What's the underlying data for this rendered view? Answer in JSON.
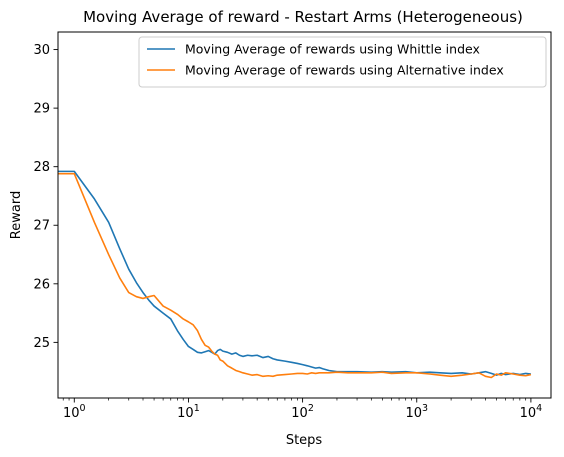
{
  "chart_data": {
    "type": "line",
    "title": "Moving Average of reward - Restart Arms (Heterogeneous)",
    "xlabel": "Steps",
    "ylabel": "Reward",
    "xscale": "log",
    "xlim": [
      0.72,
      15000
    ],
    "ylim": [
      24.05,
      30.3
    ],
    "xticks": [
      {
        "value": 1,
        "base": "10",
        "exp": "0"
      },
      {
        "value": 10,
        "base": "10",
        "exp": "1"
      },
      {
        "value": 100,
        "base": "10",
        "exp": "2"
      },
      {
        "value": 1000,
        "base": "10",
        "exp": "3"
      },
      {
        "value": 10000,
        "base": "10",
        "exp": "4"
      }
    ],
    "yticks": [
      {
        "value": 25,
        "label": "25"
      },
      {
        "value": 26,
        "label": "26"
      },
      {
        "value": 27,
        "label": "27"
      },
      {
        "value": 28,
        "label": "28"
      },
      {
        "value": 29,
        "label": "29"
      },
      {
        "value": 30,
        "label": "30"
      }
    ],
    "grid": false,
    "legend_position": "top-right",
    "series": [
      {
        "name": "Moving Average of rewards using Whittle index",
        "color": "#1f77b4",
        "x": [
          0.72,
          1,
          1.5,
          2,
          2.5,
          3,
          3.5,
          4,
          4.5,
          5,
          6,
          7,
          8,
          9,
          10,
          11,
          12,
          13,
          14,
          15,
          16,
          17,
          18,
          19,
          20,
          22,
          24,
          26,
          28,
          30,
          33,
          36,
          40,
          45,
          50,
          55,
          60,
          70,
          80,
          90,
          100,
          110,
          120,
          130,
          140,
          150,
          170,
          200,
          250,
          300,
          400,
          500,
          600,
          800,
          1000,
          1300,
          1600,
          2000,
          2500,
          3000,
          3500,
          4000,
          4500,
          5000,
          5500,
          6000,
          7000,
          8000,
          9000,
          10000
        ],
        "y": [
          27.92,
          27.92,
          27.45,
          27.05,
          26.6,
          26.25,
          26.02,
          25.85,
          25.72,
          25.62,
          25.5,
          25.4,
          25.2,
          25.05,
          24.93,
          24.88,
          24.83,
          24.82,
          24.84,
          24.86,
          24.83,
          24.8,
          24.86,
          24.88,
          24.85,
          24.83,
          24.8,
          24.82,
          24.78,
          24.76,
          24.78,
          24.77,
          24.78,
          24.74,
          24.76,
          24.72,
          24.7,
          24.68,
          24.66,
          24.64,
          24.62,
          24.6,
          24.58,
          24.56,
          24.57,
          24.55,
          24.52,
          24.5,
          24.5,
          24.5,
          24.49,
          24.5,
          24.49,
          24.5,
          24.48,
          24.49,
          24.48,
          24.47,
          24.48,
          24.46,
          24.48,
          24.5,
          24.47,
          24.44,
          24.47,
          24.45,
          24.47,
          24.45,
          24.47,
          24.46
        ]
      },
      {
        "name": "Moving Average of rewards using Alternative index",
        "color": "#ff7f0e",
        "x": [
          0.72,
          1,
          1.5,
          2,
          2.5,
          3,
          3.5,
          4,
          4.5,
          5,
          6,
          7,
          8,
          9,
          10,
          11,
          12,
          13,
          14,
          15,
          16,
          17,
          18,
          19,
          20,
          22,
          24,
          26,
          28,
          30,
          33,
          36,
          40,
          45,
          50,
          55,
          60,
          70,
          80,
          90,
          100,
          110,
          120,
          130,
          140,
          150,
          170,
          200,
          250,
          300,
          400,
          500,
          600,
          800,
          1000,
          1300,
          1600,
          2000,
          2500,
          3000,
          3500,
          4000,
          4500,
          5000,
          5500,
          6000,
          7000,
          8000,
          9000,
          10000
        ],
        "y": [
          27.88,
          27.88,
          27.05,
          26.5,
          26.1,
          25.85,
          25.78,
          25.75,
          25.78,
          25.8,
          25.62,
          25.55,
          25.48,
          25.4,
          25.35,
          25.3,
          25.2,
          25.05,
          24.95,
          24.92,
          24.85,
          24.8,
          24.78,
          24.7,
          24.68,
          24.6,
          24.56,
          24.52,
          24.5,
          24.48,
          24.46,
          24.44,
          24.45,
          24.42,
          24.43,
          24.42,
          24.44,
          24.45,
          24.46,
          24.47,
          24.47,
          24.46,
          24.48,
          24.47,
          24.48,
          24.48,
          24.48,
          24.49,
          24.48,
          24.48,
          24.48,
          24.49,
          24.47,
          24.48,
          24.48,
          24.46,
          24.44,
          24.42,
          24.44,
          24.46,
          24.48,
          24.42,
          24.4,
          24.46,
          24.44,
          24.48,
          24.46,
          24.44,
          24.43,
          24.45
        ]
      }
    ]
  }
}
